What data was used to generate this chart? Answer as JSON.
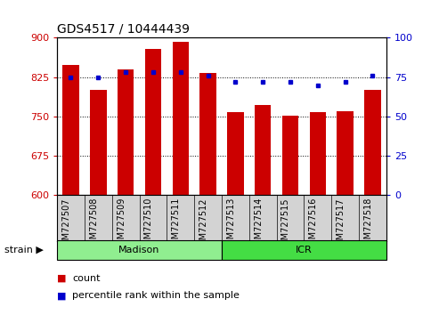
{
  "title": "GDS4517 / 10444439",
  "samples": [
    "GSM727507",
    "GSM727508",
    "GSM727509",
    "GSM727510",
    "GSM727511",
    "GSM727512",
    "GSM727513",
    "GSM727514",
    "GSM727515",
    "GSM727516",
    "GSM727517",
    "GSM727518"
  ],
  "counts": [
    848,
    800,
    840,
    878,
    893,
    833,
    758,
    772,
    752,
    758,
    760,
    800
  ],
  "percentiles": [
    75,
    75,
    78,
    78,
    78,
    76,
    72,
    72,
    72,
    70,
    72,
    76
  ],
  "ylim_left": [
    600,
    900
  ],
  "ylim_right": [
    0,
    100
  ],
  "yticks_left": [
    600,
    675,
    750,
    825,
    900
  ],
  "yticks_right": [
    0,
    25,
    50,
    75,
    100
  ],
  "bar_color": "#CC0000",
  "dot_color": "#0000CC",
  "bar_width": 0.6,
  "groups": [
    {
      "label": "Madison",
      "start": 0,
      "end": 6,
      "color": "#90EE90"
    },
    {
      "label": "ICR",
      "start": 6,
      "end": 12,
      "color": "#44DD44"
    }
  ],
  "strain_label": "strain",
  "legend_count_label": "count",
  "legend_percentile_label": "percentile rank within the sample",
  "grid_color": "#000000",
  "tick_color_left": "#CC0000",
  "tick_color_right": "#0000CC",
  "title_fontsize": 10,
  "tick_fontsize": 8,
  "label_fontsize": 8,
  "xlabel_fontsize": 7,
  "background_plot": "#FFFFFF",
  "background_xlabel": "#D3D3D3",
  "legend_fontsize": 8
}
